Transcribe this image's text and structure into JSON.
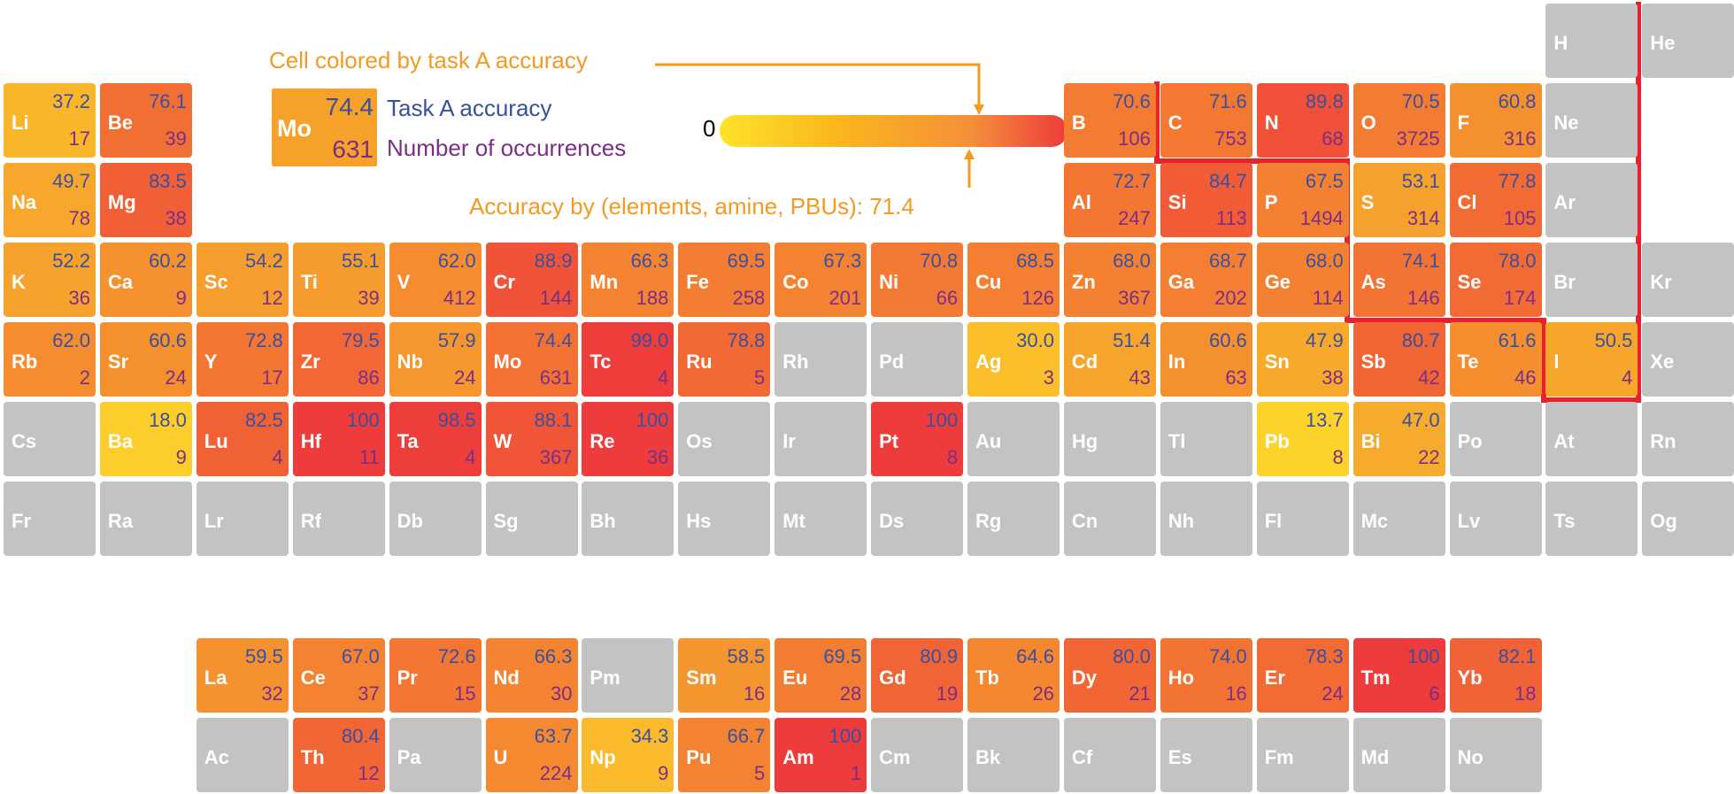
{
  "legend": {
    "cell_colored_label": "Cell colored by task A accuracy",
    "example_symbol": "Mo",
    "example_accuracy": "74.4",
    "example_count": "631",
    "accuracy_label": "Task A accuracy",
    "count_label": "Number of occurrences",
    "scale_min": "0",
    "scale_max": "100",
    "overall_label": "Accuracy by (elements, amine, PBUs): 71.4"
  },
  "colors": {
    "low": "#ffe22a",
    "mid": "#f7a72c",
    "high": "#ee3b3b",
    "missing": "#c3c3c3",
    "accuracy_text": "#3a4f9e",
    "count_text": "#7a2e88",
    "legend_orange": "#f29a21",
    "boundary_line": "#e8212b"
  },
  "chart_data": {
    "type": "heatmap",
    "color_scale": [
      0,
      100
    ],
    "overall_accuracy": 71.4,
    "elements": [
      {
        "symbol": "H",
        "period": 1,
        "group": 17,
        "accuracy": null,
        "count": null
      },
      {
        "symbol": "He",
        "period": 1,
        "group": 18,
        "accuracy": null,
        "count": null
      },
      {
        "symbol": "Li",
        "period": 2,
        "group": 1,
        "accuracy": "37.2",
        "count": "17"
      },
      {
        "symbol": "Be",
        "period": 2,
        "group": 2,
        "accuracy": "76.1",
        "count": "39"
      },
      {
        "symbol": "B",
        "period": 2,
        "group": 12,
        "accuracy": "70.6",
        "count": "106"
      },
      {
        "symbol": "C",
        "period": 2,
        "group": 13,
        "accuracy": "71.6",
        "count": "753"
      },
      {
        "symbol": "N",
        "period": 2,
        "group": 14,
        "accuracy": "89.8",
        "count": "68"
      },
      {
        "symbol": "O",
        "period": 2,
        "group": 15,
        "accuracy": "70.5",
        "count": "3725"
      },
      {
        "symbol": "F",
        "period": 2,
        "group": 16,
        "accuracy": "60.8",
        "count": "316"
      },
      {
        "symbol": "Ne",
        "period": 2,
        "group": 17,
        "accuracy": null,
        "count": null
      },
      {
        "symbol": "Na",
        "period": 3,
        "group": 1,
        "accuracy": "49.7",
        "count": "78"
      },
      {
        "symbol": "Mg",
        "period": 3,
        "group": 2,
        "accuracy": "83.5",
        "count": "38"
      },
      {
        "symbol": "Al",
        "period": 3,
        "group": 12,
        "accuracy": "72.7",
        "count": "247"
      },
      {
        "symbol": "Si",
        "period": 3,
        "group": 13,
        "accuracy": "84.7",
        "count": "113"
      },
      {
        "symbol": "P",
        "period": 3,
        "group": 14,
        "accuracy": "67.5",
        "count": "1494"
      },
      {
        "symbol": "S",
        "period": 3,
        "group": 15,
        "accuracy": "53.1",
        "count": "314"
      },
      {
        "symbol": "Cl",
        "period": 3,
        "group": 16,
        "accuracy": "77.8",
        "count": "105"
      },
      {
        "symbol": "Ar",
        "period": 3,
        "group": 17,
        "accuracy": null,
        "count": null
      },
      {
        "symbol": "K",
        "period": 4,
        "group": 1,
        "accuracy": "52.2",
        "count": "36"
      },
      {
        "symbol": "Ca",
        "period": 4,
        "group": 2,
        "accuracy": "60.2",
        "count": "9"
      },
      {
        "symbol": "Sc",
        "period": 4,
        "group": 3,
        "accuracy": "54.2",
        "count": "12"
      },
      {
        "symbol": "Ti",
        "period": 4,
        "group": 4,
        "accuracy": "55.1",
        "count": "39"
      },
      {
        "symbol": "V",
        "period": 4,
        "group": 5,
        "accuracy": "62.0",
        "count": "412"
      },
      {
        "symbol": "Cr",
        "period": 4,
        "group": 6,
        "accuracy": "88.9",
        "count": "144"
      },
      {
        "symbol": "Mn",
        "period": 4,
        "group": 7,
        "accuracy": "66.3",
        "count": "188"
      },
      {
        "symbol": "Fe",
        "period": 4,
        "group": 8,
        "accuracy": "69.5",
        "count": "258"
      },
      {
        "symbol": "Co",
        "period": 4,
        "group": 9,
        "accuracy": "67.3",
        "count": "201"
      },
      {
        "symbol": "Ni",
        "period": 4,
        "group": 10,
        "accuracy": "70.8",
        "count": "66"
      },
      {
        "symbol": "Cu",
        "period": 4,
        "group": 11,
        "accuracy": "68.5",
        "count": "126"
      },
      {
        "symbol": "Zn",
        "period": 4,
        "group": 12,
        "accuracy": "68.0",
        "count": "367"
      },
      {
        "symbol": "Ga",
        "period": 4,
        "group": 13,
        "accuracy": "68.7",
        "count": "202"
      },
      {
        "symbol": "Ge",
        "period": 4,
        "group": 14,
        "accuracy": "68.0",
        "count": "114"
      },
      {
        "symbol": "As",
        "period": 4,
        "group": 15,
        "accuracy": "74.1",
        "count": "146"
      },
      {
        "symbol": "Se",
        "period": 4,
        "group": 16,
        "accuracy": "78.0",
        "count": "174"
      },
      {
        "symbol": "Br",
        "period": 4,
        "group": 17,
        "accuracy": null,
        "count": null
      },
      {
        "symbol": "Kr",
        "period": 4,
        "group": 18,
        "accuracy": null,
        "count": null
      },
      {
        "symbol": "Rb",
        "period": 5,
        "group": 1,
        "accuracy": "62.0",
        "count": "2"
      },
      {
        "symbol": "Sr",
        "period": 5,
        "group": 2,
        "accuracy": "60.6",
        "count": "24"
      },
      {
        "symbol": "Y",
        "period": 5,
        "group": 3,
        "accuracy": "72.8",
        "count": "17"
      },
      {
        "symbol": "Zr",
        "period": 5,
        "group": 4,
        "accuracy": "79.5",
        "count": "86"
      },
      {
        "symbol": "Nb",
        "period": 5,
        "group": 5,
        "accuracy": "57.9",
        "count": "24"
      },
      {
        "symbol": "Mo",
        "period": 5,
        "group": 6,
        "accuracy": "74.4",
        "count": "631"
      },
      {
        "symbol": "Tc",
        "period": 5,
        "group": 7,
        "accuracy": "99.0",
        "count": "4"
      },
      {
        "symbol": "Ru",
        "period": 5,
        "group": 8,
        "accuracy": "78.8",
        "count": "5"
      },
      {
        "symbol": "Rh",
        "period": 5,
        "group": 9,
        "accuracy": null,
        "count": null
      },
      {
        "symbol": "Pd",
        "period": 5,
        "group": 10,
        "accuracy": null,
        "count": null
      },
      {
        "symbol": "Ag",
        "period": 5,
        "group": 11,
        "accuracy": "30.0",
        "count": "3"
      },
      {
        "symbol": "Cd",
        "period": 5,
        "group": 12,
        "accuracy": "51.4",
        "count": "43"
      },
      {
        "symbol": "In",
        "period": 5,
        "group": 13,
        "accuracy": "60.6",
        "count": "63"
      },
      {
        "symbol": "Sn",
        "period": 5,
        "group": 14,
        "accuracy": "47.9",
        "count": "38"
      },
      {
        "symbol": "Sb",
        "period": 5,
        "group": 15,
        "accuracy": "80.7",
        "count": "42"
      },
      {
        "symbol": "Te",
        "period": 5,
        "group": 16,
        "accuracy": "61.6",
        "count": "46"
      },
      {
        "symbol": "I",
        "period": 5,
        "group": 17,
        "accuracy": "50.5",
        "count": "4"
      },
      {
        "symbol": "Xe",
        "period": 5,
        "group": 18,
        "accuracy": null,
        "count": null
      },
      {
        "symbol": "Cs",
        "period": 6,
        "group": 1,
        "accuracy": null,
        "count": null
      },
      {
        "symbol": "Ba",
        "period": 6,
        "group": 2,
        "accuracy": "18.0",
        "count": "9"
      },
      {
        "symbol": "Lu",
        "period": 6,
        "group": 3,
        "accuracy": "82.5",
        "count": "4"
      },
      {
        "symbol": "Hf",
        "period": 6,
        "group": 4,
        "accuracy": "100",
        "count": "11"
      },
      {
        "symbol": "Ta",
        "period": 6,
        "group": 5,
        "accuracy": "98.5",
        "count": "4"
      },
      {
        "symbol": "W",
        "period": 6,
        "group": 6,
        "accuracy": "88.1",
        "count": "367"
      },
      {
        "symbol": "Re",
        "period": 6,
        "group": 7,
        "accuracy": "100",
        "count": "36"
      },
      {
        "symbol": "Os",
        "period": 6,
        "group": 8,
        "accuracy": null,
        "count": null
      },
      {
        "symbol": "Ir",
        "period": 6,
        "group": 9,
        "accuracy": null,
        "count": null
      },
      {
        "symbol": "Pt",
        "period": 6,
        "group": 10,
        "accuracy": "100",
        "count": "8"
      },
      {
        "symbol": "Au",
        "period": 6,
        "group": 11,
        "accuracy": null,
        "count": null
      },
      {
        "symbol": "Hg",
        "period": 6,
        "group": 12,
        "accuracy": null,
        "count": null
      },
      {
        "symbol": "Tl",
        "period": 6,
        "group": 13,
        "accuracy": null,
        "count": null
      },
      {
        "symbol": "Pb",
        "period": 6,
        "group": 14,
        "accuracy": "13.7",
        "count": "8"
      },
      {
        "symbol": "Bi",
        "period": 6,
        "group": 15,
        "accuracy": "47.0",
        "count": "22"
      },
      {
        "symbol": "Po",
        "period": 6,
        "group": 16,
        "accuracy": null,
        "count": null
      },
      {
        "symbol": "At",
        "period": 6,
        "group": 17,
        "accuracy": null,
        "count": null
      },
      {
        "symbol": "Rn",
        "period": 6,
        "group": 18,
        "accuracy": null,
        "count": null
      },
      {
        "symbol": "Fr",
        "period": 7,
        "group": 1,
        "accuracy": null,
        "count": null
      },
      {
        "symbol": "Ra",
        "period": 7,
        "group": 2,
        "accuracy": null,
        "count": null
      },
      {
        "symbol": "Lr",
        "period": 7,
        "group": 3,
        "accuracy": null,
        "count": null
      },
      {
        "symbol": "Rf",
        "period": 7,
        "group": 4,
        "accuracy": null,
        "count": null
      },
      {
        "symbol": "Db",
        "period": 7,
        "group": 5,
        "accuracy": null,
        "count": null
      },
      {
        "symbol": "Sg",
        "period": 7,
        "group": 6,
        "accuracy": null,
        "count": null
      },
      {
        "symbol": "Bh",
        "period": 7,
        "group": 7,
        "accuracy": null,
        "count": null
      },
      {
        "symbol": "Hs",
        "period": 7,
        "group": 8,
        "accuracy": null,
        "count": null
      },
      {
        "symbol": "Mt",
        "period": 7,
        "group": 9,
        "accuracy": null,
        "count": null
      },
      {
        "symbol": "Ds",
        "period": 7,
        "group": 10,
        "accuracy": null,
        "count": null
      },
      {
        "symbol": "Rg",
        "period": 7,
        "group": 11,
        "accuracy": null,
        "count": null
      },
      {
        "symbol": "Cn",
        "period": 7,
        "group": 12,
        "accuracy": null,
        "count": null
      },
      {
        "symbol": "Nh",
        "period": 7,
        "group": 13,
        "accuracy": null,
        "count": null
      },
      {
        "symbol": "Fl",
        "period": 7,
        "group": 14,
        "accuracy": null,
        "count": null
      },
      {
        "symbol": "Mc",
        "period": 7,
        "group": 15,
        "accuracy": null,
        "count": null
      },
      {
        "symbol": "Lv",
        "period": 7,
        "group": 16,
        "accuracy": null,
        "count": null
      },
      {
        "symbol": "Ts",
        "period": 7,
        "group": 17,
        "accuracy": null,
        "count": null
      },
      {
        "symbol": "Og",
        "period": 7,
        "group": 18,
        "accuracy": null,
        "count": null
      },
      {
        "symbol": "La",
        "period": 9,
        "group": 3,
        "accuracy": "59.5",
        "count": "32"
      },
      {
        "symbol": "Ce",
        "period": 9,
        "group": 4,
        "accuracy": "67.0",
        "count": "37"
      },
      {
        "symbol": "Pr",
        "period": 9,
        "group": 5,
        "accuracy": "72.6",
        "count": "15"
      },
      {
        "symbol": "Nd",
        "period": 9,
        "group": 6,
        "accuracy": "66.3",
        "count": "30"
      },
      {
        "symbol": "Pm",
        "period": 9,
        "group": 7,
        "accuracy": null,
        "count": null
      },
      {
        "symbol": "Sm",
        "period": 9,
        "group": 8,
        "accuracy": "58.5",
        "count": "16"
      },
      {
        "symbol": "Eu",
        "period": 9,
        "group": 9,
        "accuracy": "69.5",
        "count": "28"
      },
      {
        "symbol": "Gd",
        "period": 9,
        "group": 10,
        "accuracy": "80.9",
        "count": "19"
      },
      {
        "symbol": "Tb",
        "period": 9,
        "group": 11,
        "accuracy": "64.6",
        "count": "26"
      },
      {
        "symbol": "Dy",
        "period": 9,
        "group": 12,
        "accuracy": "80.0",
        "count": "21"
      },
      {
        "symbol": "Ho",
        "period": 9,
        "group": 13,
        "accuracy": "74.0",
        "count": "16"
      },
      {
        "symbol": "Er",
        "period": 9,
        "group": 14,
        "accuracy": "78.3",
        "count": "24"
      },
      {
        "symbol": "Tm",
        "period": 9,
        "group": 15,
        "accuracy": "100",
        "count": "6"
      },
      {
        "symbol": "Yb",
        "period": 9,
        "group": 16,
        "accuracy": "82.1",
        "count": "18"
      },
      {
        "symbol": "Ac",
        "period": 10,
        "group": 3,
        "accuracy": null,
        "count": null
      },
      {
        "symbol": "Th",
        "period": 10,
        "group": 4,
        "accuracy": "80.4",
        "count": "12"
      },
      {
        "symbol": "Pa",
        "period": 10,
        "group": 5,
        "accuracy": null,
        "count": null
      },
      {
        "symbol": "U",
        "period": 10,
        "group": 6,
        "accuracy": "63.7",
        "count": "224"
      },
      {
        "symbol": "Np",
        "period": 10,
        "group": 7,
        "accuracy": "34.3",
        "count": "9"
      },
      {
        "symbol": "Pu",
        "period": 10,
        "group": 8,
        "accuracy": "66.7",
        "count": "5"
      },
      {
        "symbol": "Am",
        "period": 10,
        "group": 9,
        "accuracy": "100",
        "count": "1"
      },
      {
        "symbol": "Cm",
        "period": 10,
        "group": 10,
        "accuracy": null,
        "count": null
      },
      {
        "symbol": "Bk",
        "period": 10,
        "group": 11,
        "accuracy": null,
        "count": null
      },
      {
        "symbol": "Cf",
        "period": 10,
        "group": 12,
        "accuracy": null,
        "count": null
      },
      {
        "symbol": "Es",
        "period": 10,
        "group": 13,
        "accuracy": null,
        "count": null
      },
      {
        "symbol": "Fm",
        "period": 10,
        "group": 14,
        "accuracy": null,
        "count": null
      },
      {
        "symbol": "Md",
        "period": 10,
        "group": 15,
        "accuracy": null,
        "count": null
      },
      {
        "symbol": "No",
        "period": 10,
        "group": 16,
        "accuracy": null,
        "count": null
      }
    ]
  }
}
